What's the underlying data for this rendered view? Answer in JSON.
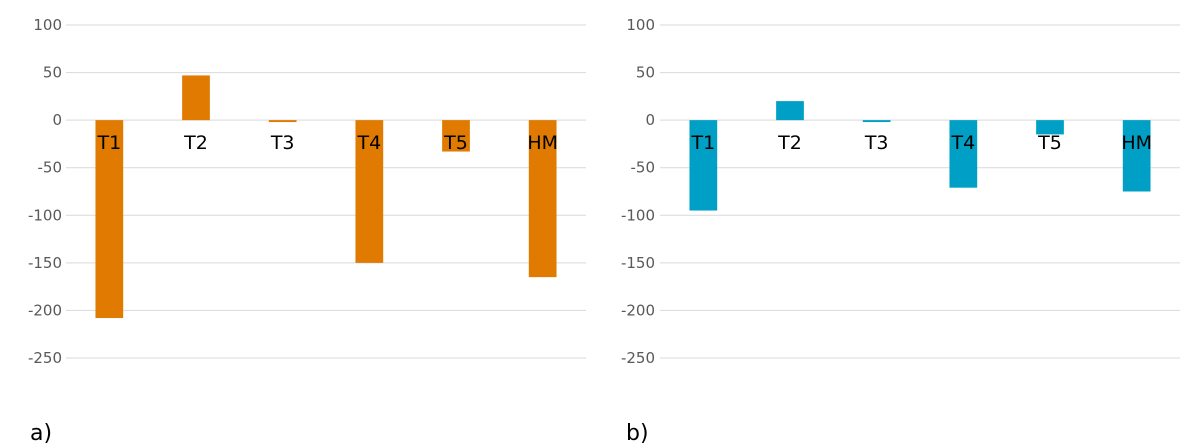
{
  "chart_data": [
    {
      "type": "bar",
      "panel_label": "a)",
      "categories": [
        "T1",
        "T2",
        "T3",
        "T4",
        "T5",
        "HM"
      ],
      "values": [
        -208,
        47,
        -2,
        -150,
        -33,
        -165
      ],
      "yticks": [
        100,
        50,
        0,
        -50,
        -100,
        -150,
        -200,
        -250
      ],
      "ylim": [
        -250,
        100
      ],
      "grid": true,
      "colors": {
        "bar": "#E07A00",
        "grid": "#D9D9D9",
        "tick": "#595959"
      }
    },
    {
      "type": "bar",
      "panel_label": "b)",
      "categories": [
        "T1",
        "T2",
        "T3",
        "T4",
        "T5",
        "HM"
      ],
      "values": [
        -95,
        20,
        -2,
        -71,
        -15,
        -75
      ],
      "yticks": [
        100,
        50,
        0,
        -50,
        -100,
        -150,
        -200,
        -250
      ],
      "ylim": [
        -250,
        100
      ],
      "grid": true,
      "colors": {
        "bar": "#00A0C6",
        "grid": "#D9D9D9",
        "tick": "#595959"
      }
    }
  ]
}
